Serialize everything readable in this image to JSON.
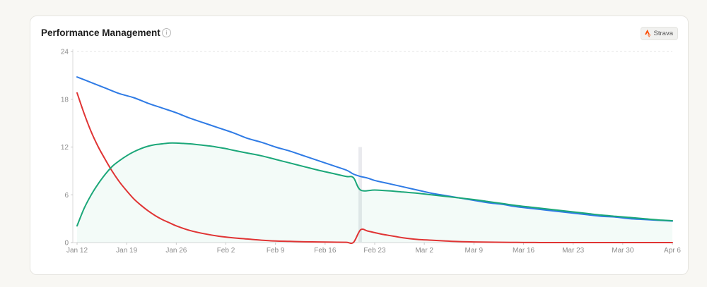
{
  "card": {
    "title": "Performance Management",
    "info_icon": "info-icon",
    "badge": {
      "label": "Strava",
      "icon": "strava-icon",
      "color": "#fc4c02"
    }
  },
  "chart_data": {
    "type": "line",
    "title": "Performance Management",
    "xlabel": "",
    "ylabel": "",
    "ylim": [
      0,
      24
    ],
    "yticks": [
      0,
      6,
      12,
      18,
      24
    ],
    "x_tick_labels": [
      "Jan 12",
      "Jan 19",
      "Jan 26",
      "Feb 2",
      "Feb 9",
      "Feb 16",
      "Feb 23",
      "Mar 2",
      "Mar 9",
      "Mar 16",
      "Mar 23",
      "Mar 30",
      "Apr 6"
    ],
    "x_day_range": [
      0,
      84
    ],
    "grid": "dashed top line",
    "legend": "none",
    "highlight_day": 40,
    "series": [
      {
        "color": "#2f7be5",
        "fill": false,
        "points": [
          [
            0,
            20.8
          ],
          [
            2,
            20.1
          ],
          [
            4,
            19.4
          ],
          [
            6,
            18.7
          ],
          [
            8,
            18.2
          ],
          [
            10,
            17.5
          ],
          [
            12,
            16.9
          ],
          [
            14,
            16.3
          ],
          [
            16,
            15.6
          ],
          [
            18,
            15.0
          ],
          [
            20,
            14.4
          ],
          [
            22,
            13.8
          ],
          [
            24,
            13.1
          ],
          [
            26,
            12.6
          ],
          [
            28,
            12.0
          ],
          [
            30,
            11.5
          ],
          [
            32,
            10.9
          ],
          [
            34,
            10.3
          ],
          [
            36,
            9.7
          ],
          [
            38,
            9.1
          ],
          [
            39,
            8.6
          ],
          [
            40,
            8.3
          ],
          [
            41,
            8.1
          ],
          [
            42,
            7.8
          ],
          [
            44,
            7.4
          ],
          [
            46,
            7.0
          ],
          [
            48,
            6.6
          ],
          [
            50,
            6.2
          ],
          [
            52,
            5.9
          ],
          [
            54,
            5.6
          ],
          [
            56,
            5.3
          ],
          [
            58,
            5.0
          ],
          [
            60,
            4.8
          ],
          [
            62,
            4.5
          ],
          [
            64,
            4.3
          ],
          [
            66,
            4.1
          ],
          [
            68,
            3.9
          ],
          [
            70,
            3.7
          ],
          [
            72,
            3.5
          ],
          [
            74,
            3.3
          ],
          [
            76,
            3.2
          ],
          [
            78,
            3.0
          ],
          [
            80,
            2.9
          ],
          [
            82,
            2.8
          ],
          [
            84,
            2.7
          ]
        ]
      },
      {
        "color": "#e03434",
        "fill": false,
        "points": [
          [
            0,
            18.8
          ],
          [
            1,
            16.2
          ],
          [
            2,
            13.9
          ],
          [
            3,
            12.0
          ],
          [
            4,
            10.4
          ],
          [
            5,
            8.9
          ],
          [
            6,
            7.6
          ],
          [
            7,
            6.5
          ],
          [
            8,
            5.5
          ],
          [
            9,
            4.7
          ],
          [
            10,
            4.0
          ],
          [
            11,
            3.4
          ],
          [
            12,
            2.9
          ],
          [
            13,
            2.5
          ],
          [
            14,
            2.1
          ],
          [
            16,
            1.5
          ],
          [
            18,
            1.1
          ],
          [
            20,
            0.8
          ],
          [
            22,
            0.6
          ],
          [
            24,
            0.45
          ],
          [
            26,
            0.3
          ],
          [
            28,
            0.2
          ],
          [
            30,
            0.15
          ],
          [
            32,
            0.1
          ],
          [
            34,
            0.08
          ],
          [
            36,
            0.05
          ],
          [
            38,
            0.03
          ],
          [
            39,
            0.02
          ],
          [
            40,
            1.6
          ],
          [
            41,
            1.45
          ],
          [
            42,
            1.25
          ],
          [
            43,
            1.05
          ],
          [
            44,
            0.9
          ],
          [
            45,
            0.75
          ],
          [
            46,
            0.6
          ],
          [
            48,
            0.4
          ],
          [
            50,
            0.3
          ],
          [
            52,
            0.2
          ],
          [
            54,
            0.12
          ],
          [
            56,
            0.08
          ],
          [
            58,
            0.05
          ],
          [
            60,
            0.03
          ],
          [
            62,
            0.02
          ],
          [
            64,
            0.01
          ],
          [
            66,
            0.0
          ],
          [
            70,
            0.0
          ],
          [
            76,
            0.0
          ],
          [
            84,
            0.0
          ]
        ]
      },
      {
        "color": "#1ba779",
        "fill": true,
        "points": [
          [
            0,
            2.1
          ],
          [
            1,
            4.3
          ],
          [
            2,
            6.0
          ],
          [
            3,
            7.4
          ],
          [
            4,
            8.6
          ],
          [
            5,
            9.6
          ],
          [
            6,
            10.3
          ],
          [
            7,
            10.9
          ],
          [
            8,
            11.4
          ],
          [
            9,
            11.8
          ],
          [
            10,
            12.1
          ],
          [
            11,
            12.3
          ],
          [
            12,
            12.4
          ],
          [
            13,
            12.5
          ],
          [
            14,
            12.5
          ],
          [
            15,
            12.45
          ],
          [
            16,
            12.4
          ],
          [
            17,
            12.3
          ],
          [
            18,
            12.2
          ],
          [
            19,
            12.1
          ],
          [
            20,
            11.95
          ],
          [
            21,
            11.8
          ],
          [
            22,
            11.6
          ],
          [
            24,
            11.25
          ],
          [
            26,
            10.9
          ],
          [
            28,
            10.45
          ],
          [
            30,
            10.0
          ],
          [
            32,
            9.55
          ],
          [
            34,
            9.1
          ],
          [
            36,
            8.7
          ],
          [
            38,
            8.3
          ],
          [
            39,
            8.15
          ],
          [
            40,
            6.6
          ],
          [
            42,
            6.6
          ],
          [
            44,
            6.5
          ],
          [
            46,
            6.35
          ],
          [
            48,
            6.2
          ],
          [
            50,
            6.0
          ],
          [
            52,
            5.8
          ],
          [
            54,
            5.6
          ],
          [
            56,
            5.4
          ],
          [
            58,
            5.15
          ],
          [
            60,
            4.9
          ],
          [
            62,
            4.65
          ],
          [
            64,
            4.45
          ],
          [
            66,
            4.25
          ],
          [
            68,
            4.05
          ],
          [
            70,
            3.85
          ],
          [
            72,
            3.65
          ],
          [
            74,
            3.45
          ],
          [
            76,
            3.3
          ],
          [
            78,
            3.15
          ],
          [
            80,
            3.0
          ],
          [
            82,
            2.85
          ],
          [
            84,
            2.75
          ]
        ]
      }
    ]
  }
}
